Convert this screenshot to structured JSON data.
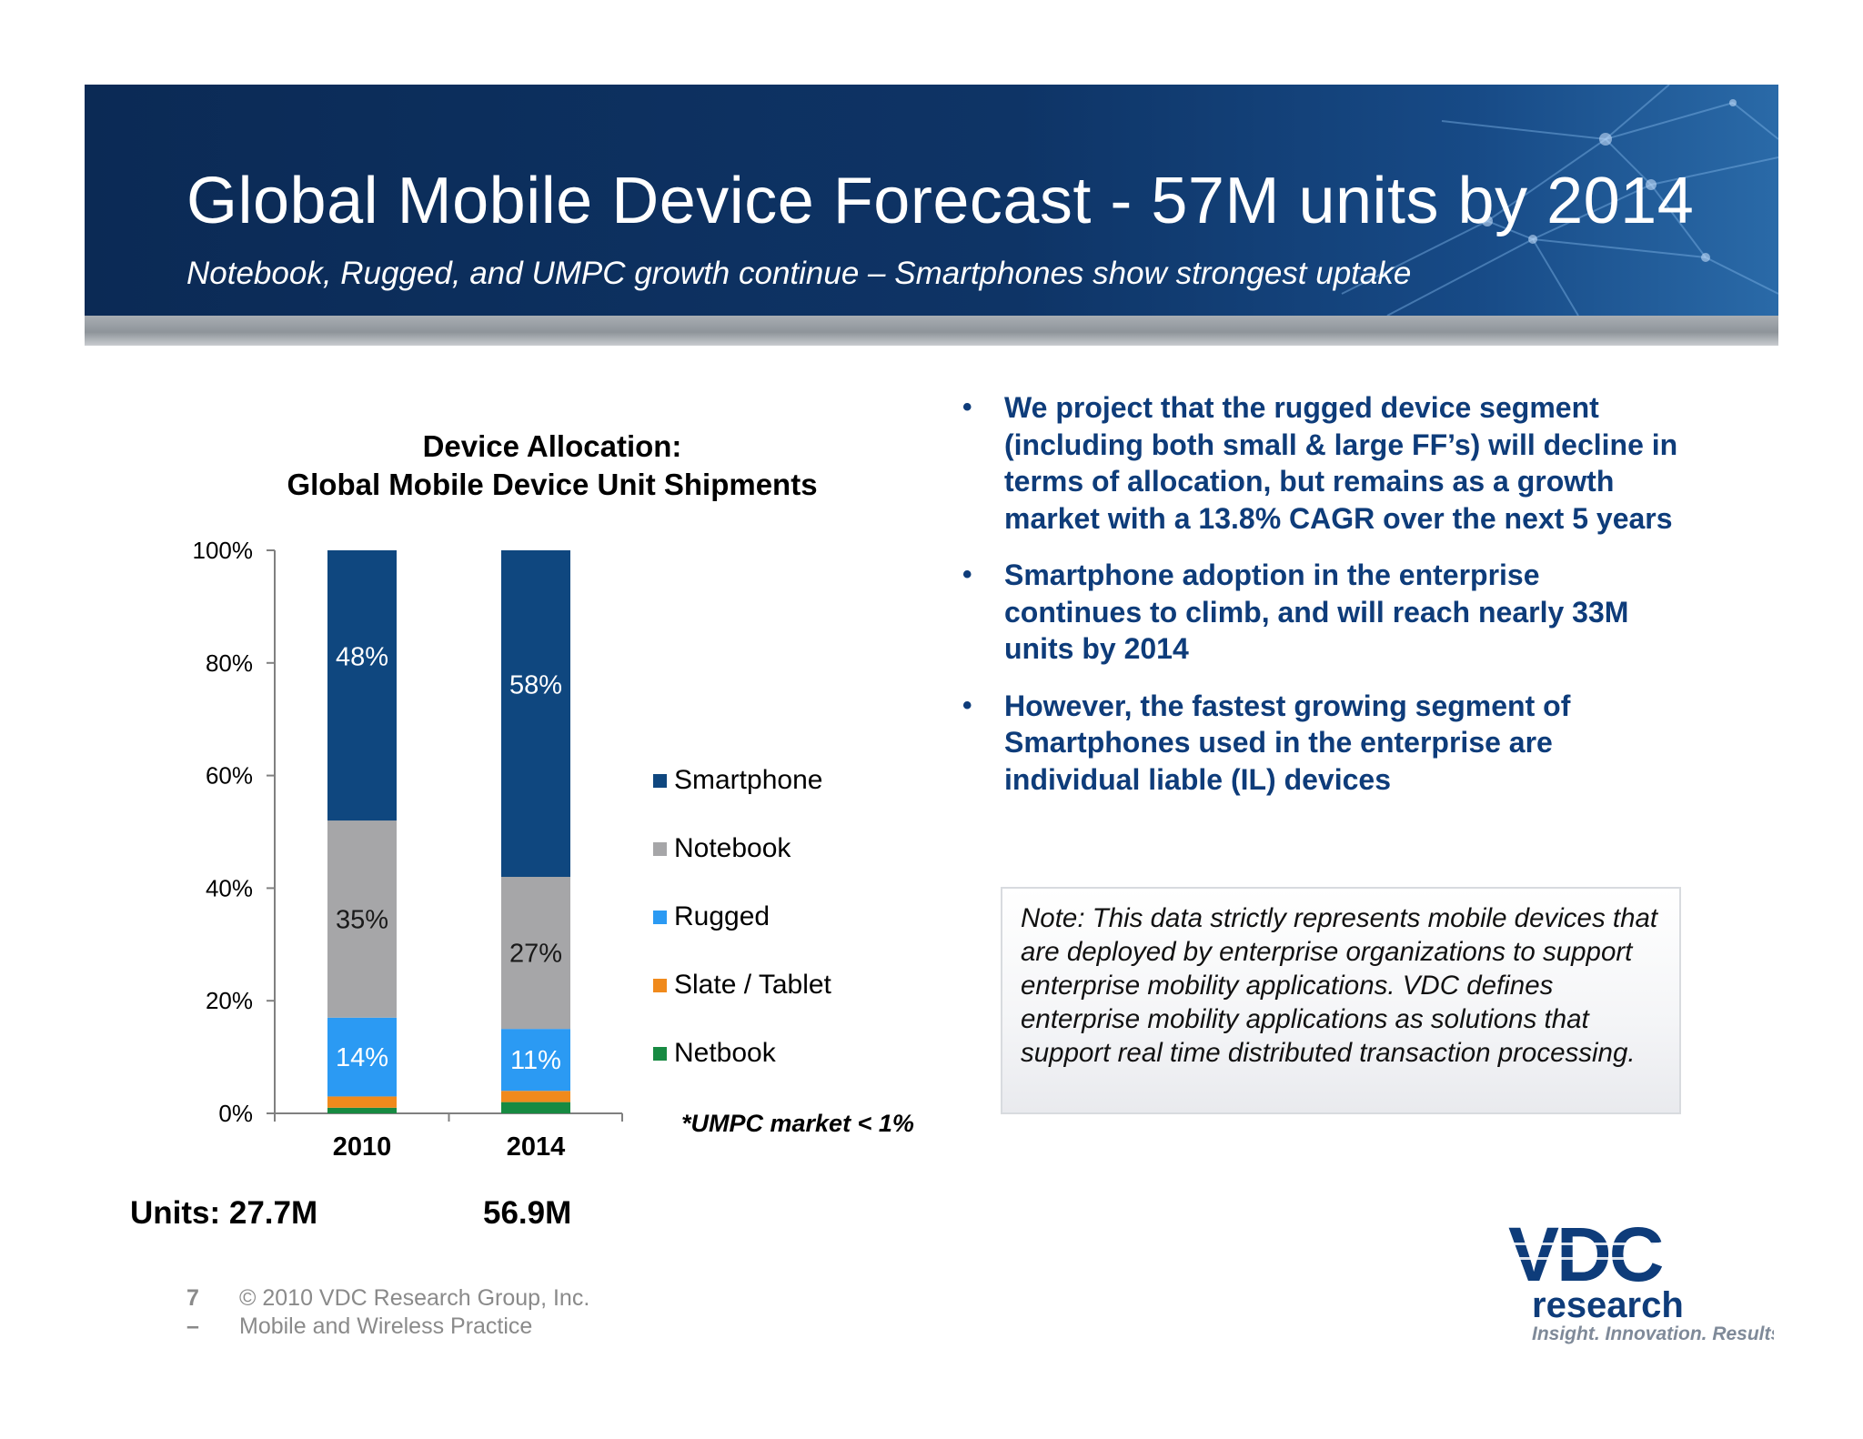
{
  "header": {
    "title": "Global Mobile Device Forecast - 57M units by 2014",
    "subtitle": "Notebook, Rugged, and UMPC growth continue – Smartphones show strongest uptake"
  },
  "colors": {
    "banner": "#0e3466",
    "smartphone": "#0f477f",
    "notebook": "#a6a6a8",
    "rugged": "#2b9af3",
    "slate": "#f08a1c",
    "netbook": "#178a42",
    "accent_text": "#0e3c7a"
  },
  "chart_data": {
    "type": "bar",
    "stacked": true,
    "title": "Device Allocation:\nGlobal Mobile Device Unit Shipments",
    "title_lines": [
      "Device Allocation:",
      "Global Mobile Device Unit Shipments"
    ],
    "categories": [
      "2010",
      "2014"
    ],
    "ylim": [
      0,
      100
    ],
    "y_ticks": [
      "0%",
      "20%",
      "40%",
      "60%",
      "80%",
      "100%"
    ],
    "y_tick_values": [
      0,
      20,
      40,
      60,
      80,
      100
    ],
    "grid": false,
    "legend_position": "right",
    "series": [
      {
        "name": "Netbook",
        "values": [
          1,
          2
        ],
        "color": "#178a42",
        "labels": [
          "",
          ""
        ]
      },
      {
        "name": "Slate / Tablet",
        "values": [
          2,
          2
        ],
        "color": "#f08a1c",
        "labels": [
          "",
          ""
        ]
      },
      {
        "name": "Rugged",
        "values": [
          14,
          11
        ],
        "color": "#2b9af3",
        "labels": [
          "14%",
          "11%"
        ]
      },
      {
        "name": "Notebook",
        "values": [
          35,
          27
        ],
        "color": "#a6a6a8",
        "labels": [
          "35%",
          "27%"
        ]
      },
      {
        "name": "Smartphone",
        "values": [
          48,
          58
        ],
        "color": "#0f477f",
        "labels": [
          "48%",
          "58%"
        ]
      }
    ],
    "legend_order": [
      "Smartphone",
      "Notebook",
      "Rugged",
      "Slate / Tablet",
      "Netbook"
    ],
    "footnote": "*UMPC market < 1%"
  },
  "units": {
    "label_2010": "Units: 27.7M",
    "label_2014": "56.9M"
  },
  "bullets": [
    "We project that the rugged device segment (including both small & large FF’s) will decline in terms of allocation, but remains as a growth market with a 13.8% CAGR over the next 5 years",
    "Smartphone adoption in the enterprise continues to climb, and will reach nearly 33M units by 2014",
    "However, the fastest growing segment of Smartphones used in the enterprise are individual liable (IL) devices"
  ],
  "bullet_symbol": "•",
  "note": "Note: This data strictly represents mobile devices that are deployed by enterprise organizations to support enterprise mobility applications. VDC defines enterprise mobility applications as solutions that support real time distributed transaction processing.",
  "footer": {
    "page": "7 –",
    "copyright": "© 2010 VDC Research Group, Inc.",
    "practice": "Mobile and Wireless Practice"
  },
  "logo": {
    "brand": "VDC",
    "name": "research",
    "tagline": "Insight. Innovation. Results."
  }
}
